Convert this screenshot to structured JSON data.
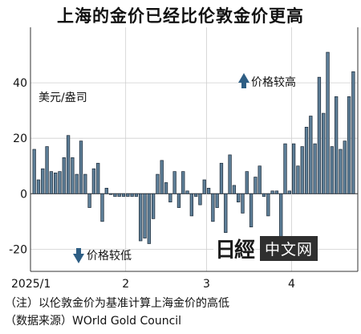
{
  "title": "上海的金价已经比伦敦金价更高",
  "unit_label": "美元/盎司",
  "annotations": {
    "higher": "价格较高",
    "lower": "价格较低"
  },
  "notes": [
    "（注）以伦敦金价为基准计算上海金价的高低",
    "（数据来源）WOrld Gold Council"
  ],
  "logo": {
    "text": "中文网"
  },
  "colors": {
    "bar": "#5e7f98",
    "bar_stroke": "#1b2836",
    "arrow": "#2e5e84"
  },
  "chart_data": {
    "type": "bar",
    "ylim": [
      -28,
      60
    ],
    "yticks": [
      -20,
      0,
      20,
      40
    ],
    "x_tick_labels": [
      "2025/1",
      "2",
      "3",
      "4"
    ],
    "x_tick_positions": [
      0,
      22,
      41,
      61
    ],
    "values": [
      16,
      5,
      9,
      17,
      8,
      7.5,
      8,
      13,
      21,
      13,
      7,
      19,
      7,
      -5,
      9,
      11,
      -10,
      2,
      0,
      -1,
      -1,
      -1,
      -1,
      -1,
      -1,
      -17,
      -16,
      -18,
      -9,
      7,
      12,
      4,
      -3,
      8,
      -5,
      8,
      1,
      -8,
      -1,
      -4,
      5,
      2,
      -10,
      -5,
      11,
      -14,
      14,
      3,
      -3,
      -7,
      8,
      -12,
      6,
      10,
      -1,
      -8,
      1,
      1,
      -16,
      18,
      1,
      18,
      10,
      17,
      24,
      28,
      18,
      42,
      29,
      51,
      17,
      35,
      16,
      19,
      35,
      44
    ]
  }
}
